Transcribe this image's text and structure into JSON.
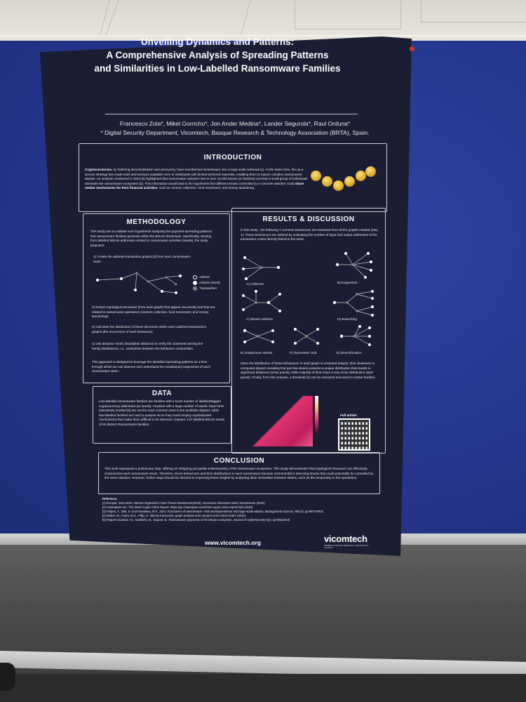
{
  "poster": {
    "title_line1": "Unveiling Dynamics and Patterns:",
    "title_line2": "A Comprehensive Analysis of Spreading Patterns",
    "title_line3": "and Similarities in Low-Labelled Ransomware Families",
    "authors": "Francesco Zola*, Mikel Gorricho*, Jon Ander Medina*, Lander Segurola*, Raul Orduna*",
    "affiliation": "* Digital Security Department, Vicomtech, Basque Research & Technology Association (BRTA), Spain.",
    "introduction": {
      "heading": "INTRODUCTION",
      "lead": "Cryptocurrencies",
      "body": ", by fostering decentralisation and anonymity, have transformed ransomware into a large-scale outbreak [1]. At the same time, the as-a-service strategy has made tools and services available even to individuals with limited technical expertise, enabling them to launch complex ransomware attacks. An analysis conducted in 2023 [2] highlighted that ransomware variants rose to over 10,000 strains (or families) and that a small group of individuals dominate the ransomware ecosystem [3]. This information would lead to the hypothesis that different strains controlled by a concrete attacker could",
      "bold_end": "share similar mechanisms for their financial activities",
      "tail": ", such as ransom collection, fund movement, and money laundering."
    },
    "methodology": {
      "heading": "METHODOLOGY",
      "p1": "This study aim to validate such hypothesis analysing the payment-spreading patterns that ransomware families generate within the Bitcoin blockchain. Specifically, starting from labelled Bitcoin addresses related to ransomware activities (seeds), the study proposes:",
      "s1": "1) Create the address-transaction graphs [4] from each ransomware seed.",
      "legend_address": "Adress",
      "legend_seed": "Adress (seed)",
      "legend_tx": "Transaction",
      "s2": "2) Extract topological structures (from each graph) that appear recurrently and that are related to ransomware operations (ransom collection, fund movement, and money laundering).",
      "s3": "3) Calculate the distribution of these structures within each address-transactions graphs (the occurrence of each behaviour).",
      "s4": "4) Use distance metric (Euclidean distance) to verify the closeness among the family distributions, i.e., similarities between the behaviour composition.",
      "p2": "This approach is designed to leverage the identified spreading patterns as a lens through which we can observe and understand the evolutionary trajectories of each ransomware strain."
    },
    "data_section": {
      "heading": "DATA",
      "body": "Low-labelled ransomware families are families with a scant number of labelled/tagged cryptocurrency addresses (or seeds). Families with a large number of seeds: have been extensively studied [5] are not the most common ones in the available dataset; while low-labelled families are hard to analyse since they could employ sophisticated mechanisms that make them difficult to be detected. Dataset: 137 labelled Bitcoin seeds of 65 distinct Ransomware families."
    },
    "results": {
      "heading": "RESULTS & DISCUSSION",
      "p1": "In this study , the following 7 common behaviours are extracted from all the graphs created (step 1). These behaviours are defined by evaluating the number of input and output addresses of the transaction nodes directly linked to the seed.",
      "b_a": "A) Collector",
      "b_b": "B) Expansion",
      "b_c": "C) Mixed Address",
      "b_d": "D) Branching",
      "b_e": "E) Suspicious Adress",
      "b_f": "F) Symmetric Hub",
      "b_g": "G) Diversification",
      "p2": "Once the distribution of these behaviours in each graph is extracted (step3), their closeness is computed (step4) revealing that just few strains possess a unique distribution that results in significant distances (white points), while majority of them have a very close distribution (dark points). Finally, from this analysis, a threshold (λ) can be extracted and used to cluster families.",
      "full_article": "Full article:"
    },
    "conclusion": {
      "heading": "CONCLUSION",
      "body": "This work represents a preliminary step, offering an intriguing yet partial understanding of the ransomware ecosystem. This study demonstrates that topological structures can effectively characterise each ransomware strain. Therefore, these behaviours and their distributions in each ransomware become instrumental in detecting strains that could potentially be controlled by the same attacker. However, further steps should be directed to improving these insights by analysing other similarities between strains, such as the temporality in the operations."
    },
    "references": {
      "heading": "Reference:",
      "r1": "[1] Europol. Iocta 2023: Internet Organised Crime Threat Assessment(2023). Secciones relevantes sobre ransomware (2023)",
      "r2": "[2] Chainalysis Inc.: The 2023 Crypto Crime Report. https://go.chainalysis.com/2023-crypto-crime-report.html (2023)",
      "r3": "[3] Pulpett, T., Dah, D. and Nowatsou, M.F., 2022. Economics of ransomware: Risk interdependence and large-scale attacks. Management Science, 68(12), pp.8973-9002.",
      "r4": "[4] Weber, M., Fedor, M.S., Fillip, S.: Bitcoin transaction graph analysis.arXiv preprint arXiv:1502.01657 (2015)",
      "r5": "[5] Paquet-Clouston, M., Haslhofer, B., Dupont, B.: Ransomware payments in the bitcoin ecosystem. Journal of Cybersecurity 5(1), tyz003(2019)"
    },
    "url": "www.vicomtech.org",
    "logo": "vicomtech",
    "logo_sub": "MEMBER OF BASQUE RESEARCH & TECHNOLOGY ALLIANCE"
  },
  "colors": {
    "poster_bg": "#1b1d33",
    "board": "#24358a",
    "accent": "#e0336e"
  }
}
